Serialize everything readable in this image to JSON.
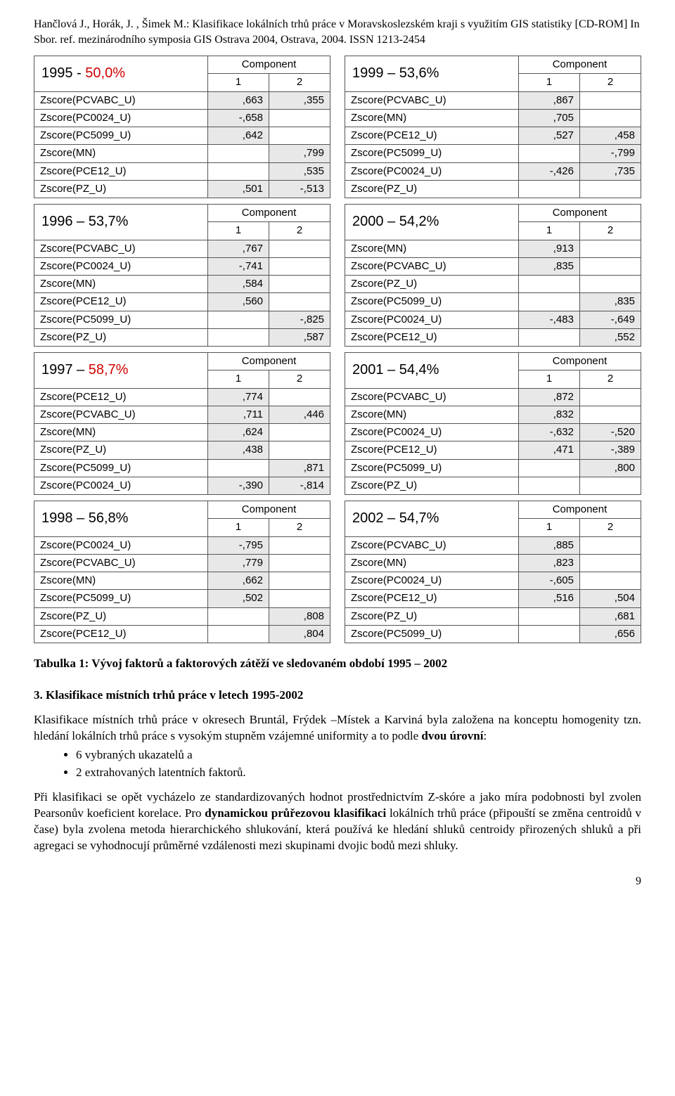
{
  "header_ref": "Hančlová J., Horák, J. , Šimek M.: Klasifikace lokálních trhů práce v Moravskoslezském kraji s využitím GIS statistiky [CD-ROM] In Sbor. ref. mezinárodního symposia GIS Ostrava 2004, Ostrava, 2004. ISSN 1213-2454",
  "comp_word": "Component",
  "col1": "1",
  "col2": "2",
  "tables": [
    {
      "title_pre": "1995 - ",
      "title_red": "50,0%",
      "title_post": "",
      "rows": [
        [
          "Zscore(PCVABC_U)",
          ",663",
          "s",
          ",355",
          "s"
        ],
        [
          "Zscore(PC0024_U)",
          "-,658",
          "s",
          "",
          "b"
        ],
        [
          "Zscore(PC5099_U)",
          ",642",
          "s",
          "",
          "b"
        ],
        [
          "Zscore(MN)",
          "",
          "b",
          ",799",
          "s"
        ],
        [
          "Zscore(PCE12_U)",
          "",
          "b",
          ",535",
          "s"
        ],
        [
          "Zscore(PZ_U)",
          ",501",
          "s",
          "-,513",
          "s"
        ]
      ]
    },
    {
      "title_pre": "1996 – 53,7%",
      "title_red": "",
      "title_post": "",
      "rows": [
        [
          "Zscore(PCVABC_U)",
          ",767",
          "s",
          "",
          "b"
        ],
        [
          "Zscore(PC0024_U)",
          "-,741",
          "s",
          "",
          "b"
        ],
        [
          "Zscore(MN)",
          ",584",
          "s",
          "",
          "b"
        ],
        [
          "Zscore(PCE12_U)",
          ",560",
          "s",
          "",
          "b"
        ],
        [
          "Zscore(PC5099_U)",
          "",
          "b",
          "-,825",
          "s"
        ],
        [
          "Zscore(PZ_U)",
          "",
          "b",
          ",587",
          "s"
        ]
      ]
    },
    {
      "title_pre": "1997 – ",
      "title_red": "58,7%",
      "title_post": "",
      "rows": [
        [
          "Zscore(PCE12_U)",
          ",774",
          "s",
          "",
          "b"
        ],
        [
          "Zscore(PCVABC_U)",
          ",711",
          "s",
          ",446",
          "s"
        ],
        [
          "Zscore(MN)",
          ",624",
          "s",
          "",
          "b"
        ],
        [
          "Zscore(PZ_U)",
          ",438",
          "s",
          "",
          "b"
        ],
        [
          "Zscore(PC5099_U)",
          "",
          "b",
          ",871",
          "s"
        ],
        [
          "Zscore(PC0024_U)",
          "-,390",
          "s",
          "-,814",
          "s"
        ]
      ]
    },
    {
      "title_pre": "1998 – 56,8%",
      "title_red": "",
      "title_post": "",
      "rows": [
        [
          "Zscore(PC0024_U)",
          "-,795",
          "s",
          "",
          "b"
        ],
        [
          "Zscore(PCVABC_U)",
          ",779",
          "s",
          "",
          "b"
        ],
        [
          "Zscore(MN)",
          ",662",
          "s",
          "",
          "b"
        ],
        [
          "Zscore(PC5099_U)",
          ",502",
          "s",
          "",
          "b"
        ],
        [
          "Zscore(PZ_U)",
          "",
          "b",
          ",808",
          "s"
        ],
        [
          "Zscore(PCE12_U)",
          "",
          "b",
          ",804",
          "s"
        ]
      ]
    },
    {
      "title_pre": "1999 – 53,6%",
      "title_red": "",
      "title_post": "",
      "rows": [
        [
          "Zscore(PCVABC_U)",
          ",867",
          "s",
          "",
          "b"
        ],
        [
          "Zscore(MN)",
          ",705",
          "s",
          "",
          "b"
        ],
        [
          "Zscore(PCE12_U)",
          ",527",
          "s",
          ",458",
          "s"
        ],
        [
          "Zscore(PC5099_U)",
          "",
          "b",
          "-,799",
          "s"
        ],
        [
          "Zscore(PC0024_U)",
          "-,426",
          "s",
          ",735",
          "s"
        ],
        [
          "Zscore(PZ_U)",
          "",
          "b",
          "",
          "b"
        ]
      ]
    },
    {
      "title_pre": "2000 – 54,2%",
      "title_red": "",
      "title_post": "",
      "rows": [
        [
          "Zscore(MN)",
          ",913",
          "s",
          "",
          "b"
        ],
        [
          "Zscore(PCVABC_U)",
          ",835",
          "s",
          "",
          "b"
        ],
        [
          "Zscore(PZ_U)",
          "",
          "b",
          "",
          "b"
        ],
        [
          "Zscore(PC5099_U)",
          "",
          "b",
          ",835",
          "s"
        ],
        [
          "Zscore(PC0024_U)",
          "-,483",
          "s",
          "-,649",
          "s"
        ],
        [
          "Zscore(PCE12_U)",
          "",
          "b",
          ",552",
          "s"
        ]
      ]
    },
    {
      "title_pre": "2001 – 54,4%",
      "title_red": "",
      "title_post": "",
      "rows": [
        [
          "Zscore(PCVABC_U)",
          ",872",
          "s",
          "",
          "b"
        ],
        [
          "Zscore(MN)",
          ",832",
          "s",
          "",
          "b"
        ],
        [
          "Zscore(PC0024_U)",
          "-,632",
          "s",
          "-,520",
          "s"
        ],
        [
          "Zscore(PCE12_U)",
          ",471",
          "s",
          "-,389",
          "s"
        ],
        [
          "Zscore(PC5099_U)",
          "",
          "b",
          ",800",
          "s"
        ],
        [
          "Zscore(PZ_U)",
          "",
          "b",
          "",
          "b"
        ]
      ]
    },
    {
      "title_pre": "2002 – 54,7%",
      "title_red": "",
      "title_post": "",
      "rows": [
        [
          "Zscore(PCVABC_U)",
          ",885",
          "s",
          "",
          "b"
        ],
        [
          "Zscore(MN)",
          ",823",
          "s",
          "",
          "b"
        ],
        [
          "Zscore(PC0024_U)",
          "-,605",
          "s",
          "",
          "b"
        ],
        [
          "Zscore(PCE12_U)",
          ",516",
          "s",
          ",504",
          "s"
        ],
        [
          "Zscore(PZ_U)",
          "",
          "b",
          ",681",
          "s"
        ],
        [
          "Zscore(PC5099_U)",
          "",
          "b",
          ",656",
          "s"
        ]
      ]
    }
  ],
  "caption": "Tabulka 1: Vývoj faktorů a faktorových zátěží ve sledovaném období 1995 – 2002",
  "section": "3. Klasifikace místních trhů práce v letech 1995-2002",
  "para1_a": "Klasifikace místních trhů práce v okresech Bruntál, Frýdek –Místek a Karviná byla založena na konceptu homogenity  tzn. hledání lokálních trhů práce s vysokým stupněm vzájemné uniformity a to podle ",
  "para1_b_bold": "dvou úrovní",
  "para1_c": ":",
  "bullets": [
    "6 vybraných ukazatelů a",
    "2 extrahovaných latentních faktorů."
  ],
  "para2_a": "Při klasifikaci se opět vycházelo ze standardizovaných hodnot prostřednictvím Z-skóre a jako míra podobnosti byl zvolen Pearsonův koeficient korelace. Pro ",
  "para2_b_bold": "dynamickou průřezovou klasifikaci",
  "para2_c": " lokálních trhů práce (připouští se změna centroidů v čase) byla zvolena metoda hierarchického shlukování, která používá ke hledání shluků centroidy přirozených shluků a při agregaci se vyhodnocují průměrné vzdálenosti mezi skupinami dvojic bodů mezi shluky.",
  "pagenum": "9"
}
